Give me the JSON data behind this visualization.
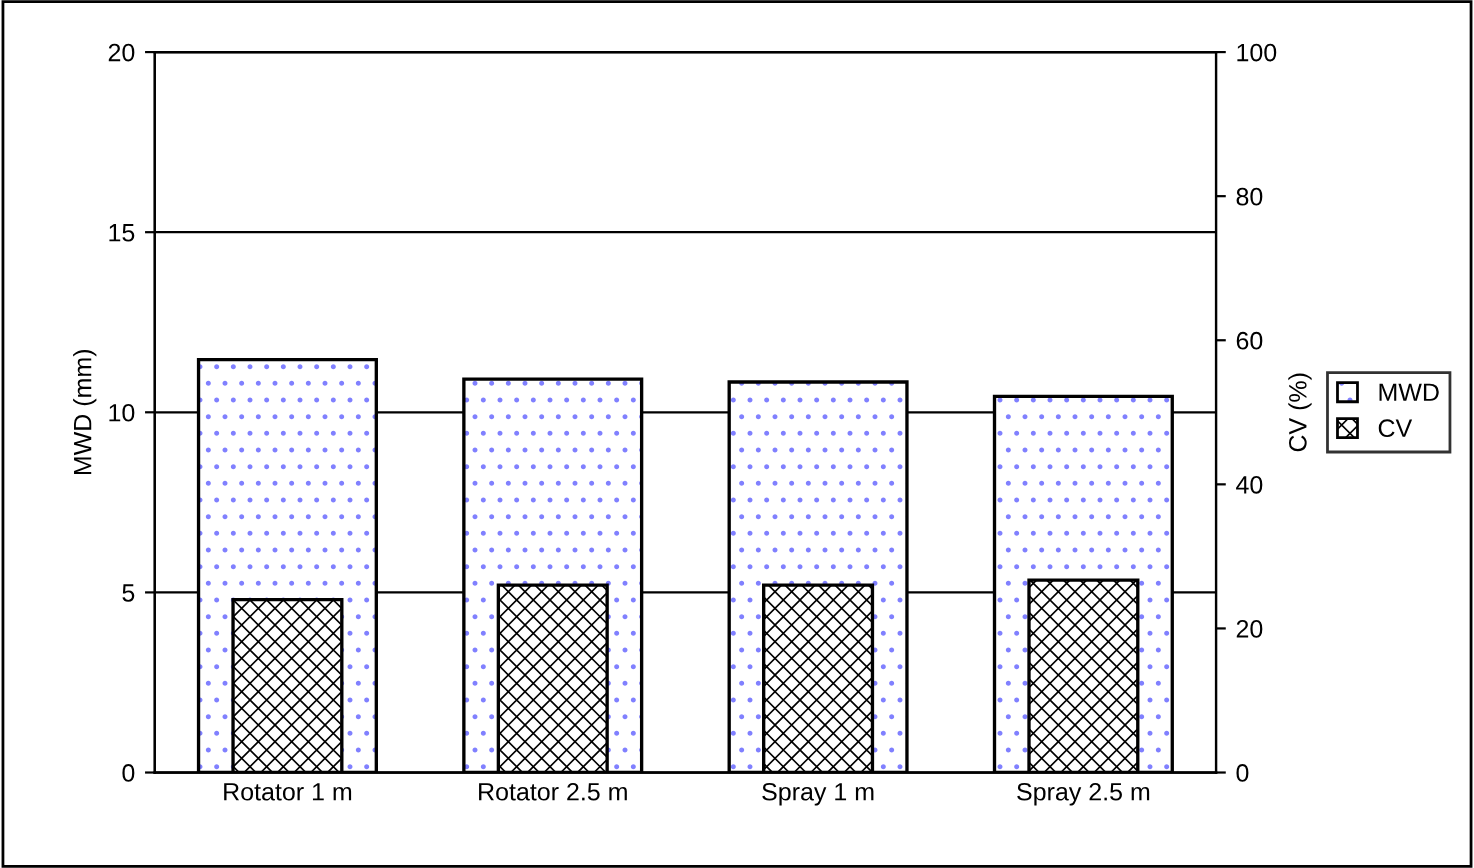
{
  "chart_data": {
    "type": "bar",
    "categories": [
      "Rotator 1 m",
      "Rotator 2.5 m",
      "Spray 1 m",
      "Spray 2.5 m"
    ],
    "series": [
      {
        "name": "MWD",
        "color": "#ffffff",
        "values": [
          11.46,
          10.92,
          10.84,
          10.44
        ]
      },
      {
        "name": "CV",
        "color": "#ffffff",
        "axis": "y2",
        "values": [
          24.0,
          26.0,
          26.0,
          26.7
        ]
      }
    ],
    "ylabel": "MWD (mm)",
    "y2label": "CV (%)",
    "ylim": [
      0,
      20
    ],
    "yticks": [
      0,
      5,
      10,
      15,
      20
    ],
    "y2lim": [
      0,
      100
    ],
    "y2ticks": [
      0,
      20,
      40,
      60,
      80,
      100
    ],
    "grid": "y",
    "legend": "right"
  }
}
